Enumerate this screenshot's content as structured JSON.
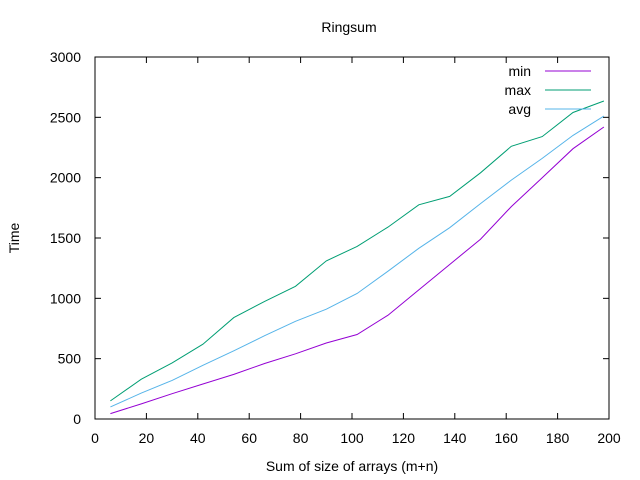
{
  "chart_data": {
    "type": "line",
    "title": "Ringsum",
    "xlabel": "Sum of size of arrays (m+n)",
    "ylabel": "Time",
    "xlim": [
      0,
      200
    ],
    "ylim": [
      0,
      3000
    ],
    "xticks": [
      0,
      20,
      40,
      60,
      80,
      100,
      120,
      140,
      160,
      180,
      200
    ],
    "yticks": [
      0,
      500,
      1000,
      1500,
      2000,
      2500,
      3000
    ],
    "grid": false,
    "legend_position": "top-right",
    "x": [
      6,
      18,
      30,
      42,
      54,
      66,
      78,
      90,
      102,
      114,
      126,
      138,
      150,
      162,
      174,
      186,
      198
    ],
    "series": [
      {
        "name": "min",
        "color": "#9400d3",
        "values": [
          45,
          125,
          210,
          290,
          370,
          460,
          540,
          630,
          700,
          860,
          1070,
          1280,
          1490,
          1760,
          2000,
          2240,
          2420
        ]
      },
      {
        "name": "max",
        "color": "#009e73",
        "values": [
          150,
          330,
          465,
          620,
          840,
          975,
          1100,
          1310,
          1430,
          1590,
          1775,
          1845,
          2040,
          2260,
          2340,
          2540,
          2635
        ]
      },
      {
        "name": "avg",
        "color": "#56b4e9",
        "values": [
          100,
          215,
          320,
          445,
          565,
          690,
          810,
          910,
          1040,
          1225,
          1415,
          1585,
          1785,
          1980,
          2160,
          2350,
          2510
        ]
      }
    ]
  }
}
